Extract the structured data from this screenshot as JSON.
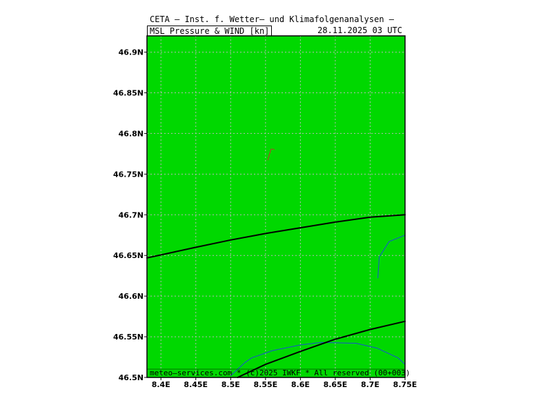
{
  "header": {
    "title": "CETA — Inst. f. Wetter— und Klimafolgenanalysen —",
    "product": "MSL_Pressure_&_WIND_[kn]",
    "valid_time": "28.11.2025 03 UTC"
  },
  "footer": {
    "credit": "meteo—services.com * (c)2025 IWKF * All reserved (00+003)"
  },
  "colors": {
    "land": "#00d800",
    "grid": "#b8b8b8",
    "isobar": "#000000",
    "coast": "#1a4fd8",
    "wind_barb": "#c0392b"
  },
  "chart_data": {
    "type": "map",
    "x_axis": {
      "ticks": [
        8.4,
        8.45,
        8.5,
        8.55,
        8.6,
        8.65,
        8.7,
        8.75
      ],
      "tick_labels": [
        "8.4E",
        "8.45E",
        "8.5E",
        "8.55E",
        "8.6E",
        "8.65E",
        "8.7E",
        "8.75E"
      ],
      "range": [
        8.38,
        8.75
      ]
    },
    "y_axis": {
      "ticks": [
        46.5,
        46.55,
        46.6,
        46.65,
        46.7,
        46.75,
        46.8,
        46.85,
        46.9
      ],
      "tick_labels": [
        "46.5N",
        "46.55N",
        "46.6N",
        "46.65N",
        "46.7N",
        "46.75N",
        "46.8N",
        "46.85N",
        "46.9N"
      ],
      "range": [
        46.5,
        46.92
      ]
    },
    "grid": true,
    "isobars": [
      {
        "points": [
          [
            8.38,
            46.647
          ],
          [
            8.45,
            46.66
          ],
          [
            8.5,
            46.669
          ],
          [
            8.55,
            46.677
          ],
          [
            8.6,
            46.684
          ],
          [
            8.65,
            46.691
          ],
          [
            8.7,
            46.697
          ],
          [
            8.75,
            46.7
          ]
        ]
      },
      {
        "points": [
          [
            8.51,
            46.5
          ],
          [
            8.55,
            46.516
          ],
          [
            8.6,
            46.532
          ],
          [
            8.65,
            46.547
          ],
          [
            8.7,
            46.559
          ],
          [
            8.75,
            46.569
          ]
        ]
      }
    ],
    "coastlines": [
      {
        "points": [
          [
            8.5,
            46.502
          ],
          [
            8.52,
            46.518
          ],
          [
            8.53,
            46.524
          ],
          [
            8.56,
            46.533
          ],
          [
            8.6,
            46.54
          ],
          [
            8.63,
            46.543
          ],
          [
            8.68,
            46.542
          ],
          [
            8.71,
            46.536
          ],
          [
            8.74,
            46.524
          ],
          [
            8.75,
            46.516
          ]
        ]
      },
      {
        "points": [
          [
            8.711,
            46.622
          ],
          [
            8.713,
            46.648
          ],
          [
            8.727,
            46.667
          ],
          [
            8.75,
            46.675
          ]
        ]
      }
    ],
    "wind_barbs": [
      {
        "lon": 8.553,
        "lat": 46.767,
        "dir_to": [
          8.558,
          46.781
        ]
      }
    ]
  }
}
